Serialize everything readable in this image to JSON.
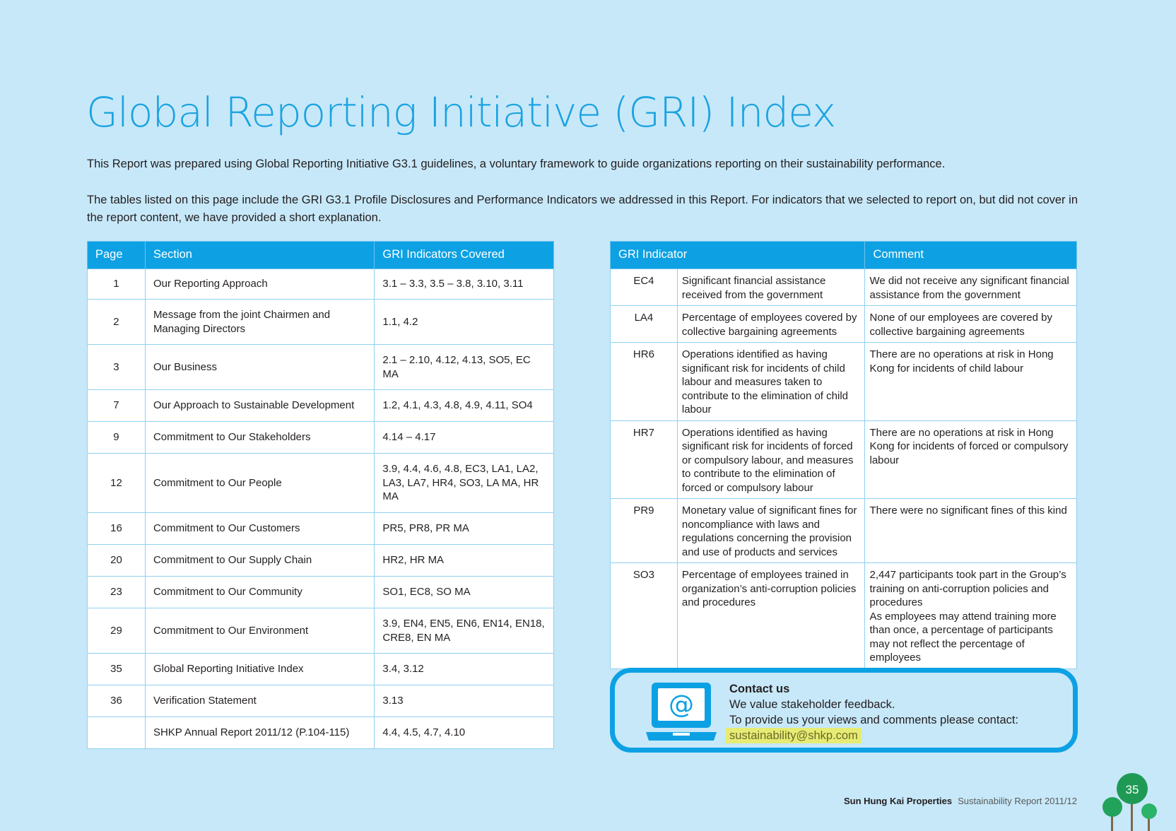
{
  "title": "Global Reporting Initiative (GRI) Index",
  "intro": [
    "This Report was prepared using Global Reporting Initiative G3.1 guidelines, a voluntary framework to guide organizations reporting on their sustainability performance.",
    "The tables listed on this page include the GRI G3.1 Profile Disclosures and Performance Indicators we addressed in this Report. For indicators that we selected to report on, but did not cover in the report content, we have provided a short explanation."
  ],
  "left_table": {
    "headers": [
      "Page",
      "Section",
      "GRI Indicators Covered"
    ],
    "rows": [
      {
        "page": "1",
        "section": "Our Reporting Approach",
        "indicators": "3.1 – 3.3, 3.5 – 3.8, 3.10, 3.11"
      },
      {
        "page": "2",
        "section": "Message from the joint Chairmen and Managing Directors",
        "indicators": "1.1, 4.2"
      },
      {
        "page": "3",
        "section": "Our Business",
        "indicators": "2.1 – 2.10, 4.12, 4.13, SO5, EC MA"
      },
      {
        "page": "7",
        "section": "Our Approach to Sustainable Development",
        "indicators": "1.2, 4.1, 4.3, 4.8, 4.9, 4.11, SO4"
      },
      {
        "page": "9",
        "section": "Commitment to Our Stakeholders",
        "indicators": "4.14 – 4.17"
      },
      {
        "page": "12",
        "section": "Commitment to Our People",
        "indicators": "3.9, 4.4, 4.6, 4.8, EC3, LA1, LA2, LA3, LA7, HR4, SO3, LA MA, HR MA"
      },
      {
        "page": "16",
        "section": "Commitment to Our Customers",
        "indicators": "PR5, PR8, PR MA"
      },
      {
        "page": "20",
        "section": "Commitment to Our Supply Chain",
        "indicators": "HR2, HR MA"
      },
      {
        "page": "23",
        "section": "Commitment to Our Community",
        "indicators": "SO1, EC8, SO MA"
      },
      {
        "page": "29",
        "section": "Commitment to Our Environment",
        "indicators": "3.9, EN4, EN5, EN6, EN14, EN18, CRE8, EN MA"
      },
      {
        "page": "35",
        "section": "Global Reporting Initiative Index",
        "indicators": "3.4, 3.12"
      },
      {
        "page": "36",
        "section": "Verification Statement",
        "indicators": "3.13"
      },
      {
        "page": "",
        "section": "SHKP Annual Report 2011/12 (P.104-115)",
        "indicators": "4.4, 4.5, 4.7, 4.10"
      }
    ]
  },
  "right_table": {
    "headers": [
      "GRI Indicator",
      "Comment"
    ],
    "rows": [
      {
        "code": "EC4",
        "description": "Significant financial assistance received from the government",
        "comment": "We did not receive any significant financial assistance from the government"
      },
      {
        "code": "LA4",
        "description": "Percentage of employees covered by collective bargaining agreements",
        "comment": "None of our employees are covered by collective bargaining agreements"
      },
      {
        "code": "HR6",
        "description": "Operations identified as having significant risk for incidents of child labour and measures taken to contribute to the elimination of child labour",
        "comment": "There are no operations at risk in Hong Kong for incidents of child labour"
      },
      {
        "code": "HR7",
        "description": "Operations identified as having significant risk for incidents of forced or compulsory labour, and measures to contribute to the elimination of forced or compulsory labour",
        "comment": "There are no operations at risk in Hong Kong for incidents of forced or compulsory labour"
      },
      {
        "code": "PR9",
        "description": "Monetary value of significant fines for noncompliance with laws and regulations concerning the provision and use of products and services",
        "comment": "There were no significant fines of this kind"
      },
      {
        "code": "SO3",
        "description": "Percentage of employees trained in organization’s anti-corruption policies and procedures",
        "comment": "2,447 participants took part in the Group’s training on anti-corruption policies and procedures",
        "comment2": "As employees may attend training more than once, a percentage of participants may not reflect the percentage of employees"
      }
    ]
  },
  "contact": {
    "heading": "Contact us",
    "line1": "We value stakeholder feedback.",
    "line2": "To provide us your views and comments please contact:",
    "email": "sustainability@shkp.com",
    "icon": "laptop-email-icon"
  },
  "footer": {
    "brand": "Sun Hung Kai Properties",
    "report": "Sustainability Report 2011/12",
    "page_number": "35"
  },
  "colors": {
    "background": "#c7e8f9",
    "accent": "#0da1e4",
    "highlight": "#e6ec73"
  }
}
